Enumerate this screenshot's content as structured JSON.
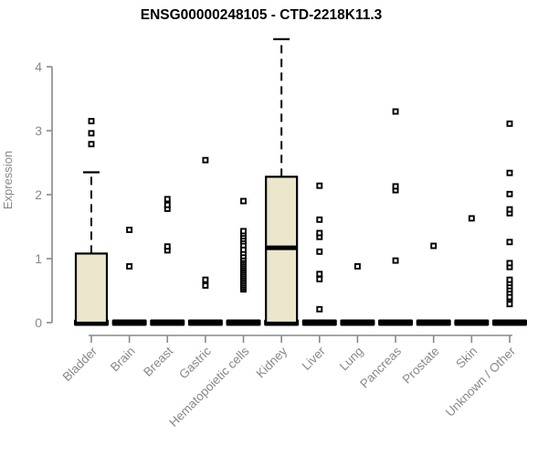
{
  "chart_data": {
    "type": "boxplot",
    "title": "ENSG00000248105 - CTD-2218K11.3",
    "ylabel": "Expression",
    "xlabel": "",
    "ylim": [
      0,
      4
    ],
    "yticks": [
      0,
      1,
      2,
      3,
      4
    ],
    "grid": false,
    "legend": "none",
    "categories": [
      "Bladder",
      "Brain",
      "Breast",
      "Gastric",
      "Hematopoietic cells",
      "Kidney",
      "Liver",
      "Lung",
      "Pancreas",
      "Prostate",
      "Skin",
      "Unknown / Other"
    ],
    "series": [
      {
        "name": "Bladder",
        "q1": 0,
        "median": 0,
        "q3": 1.08,
        "whisker_low": 0,
        "whisker_high": 2.35,
        "outliers": [
          2.79,
          2.96,
          3.15
        ]
      },
      {
        "name": "Brain",
        "q1": 0,
        "median": 0,
        "q3": 0,
        "whisker_low": 0,
        "whisker_high": 0,
        "outliers": [
          0.88,
          1.45
        ]
      },
      {
        "name": "Breast",
        "q1": 0,
        "median": 0,
        "q3": 0,
        "whisker_low": 0,
        "whisker_high": 0,
        "outliers": [
          1.13,
          1.19,
          1.78,
          1.84,
          1.93
        ]
      },
      {
        "name": "Gastric",
        "q1": 0,
        "median": 0,
        "q3": 0,
        "whisker_low": 0,
        "whisker_high": 0,
        "outliers": [
          0.58,
          0.67,
          2.54
        ]
      },
      {
        "name": "Hematopoietic cells",
        "q1": 0,
        "median": 0,
        "q3": 0,
        "whisker_low": 0,
        "whisker_high": 0,
        "outliers": [
          0.52,
          0.55,
          0.58,
          0.61,
          0.64,
          0.67,
          0.7,
          0.73,
          0.76,
          0.79,
          0.82,
          0.85,
          0.88,
          0.91,
          0.94,
          0.97,
          1.0,
          1.04,
          1.09,
          1.14,
          1.21,
          1.27,
          1.31,
          1.35,
          1.39,
          1.43,
          1.9
        ]
      },
      {
        "name": "Kidney",
        "q1": 0,
        "median": 1.17,
        "q3": 2.28,
        "whisker_low": 0,
        "whisker_high": 4.43,
        "outliers": []
      },
      {
        "name": "Liver",
        "q1": 0,
        "median": 0,
        "q3": 0,
        "whisker_low": 0,
        "whisker_high": 0,
        "outliers": [
          0.21,
          0.68,
          0.76,
          1.11,
          1.34,
          1.4,
          1.61,
          2.14
        ]
      },
      {
        "name": "Lung",
        "q1": 0,
        "median": 0,
        "q3": 0,
        "whisker_low": 0,
        "whisker_high": 0,
        "outliers": [
          0.88
        ]
      },
      {
        "name": "Pancreas",
        "q1": 0,
        "median": 0,
        "q3": 0,
        "whisker_low": 0,
        "whisker_high": 0,
        "outliers": [
          0.97,
          2.07,
          2.13,
          3.3
        ]
      },
      {
        "name": "Prostate",
        "q1": 0,
        "median": 0,
        "q3": 0,
        "whisker_low": 0,
        "whisker_high": 0,
        "outliers": [
          1.2
        ]
      },
      {
        "name": "Skin",
        "q1": 0,
        "median": 0,
        "q3": 0,
        "whisker_low": 0,
        "whisker_high": 0,
        "outliers": [
          1.63
        ]
      },
      {
        "name": "Unknown / Other",
        "q1": 0,
        "median": 0,
        "q3": 0,
        "whisker_low": 0,
        "whisker_high": 0,
        "outliers": [
          0.29,
          0.37,
          0.4,
          0.47,
          0.52,
          0.57,
          0.62,
          0.67,
          0.87,
          0.93,
          1.26,
          1.71,
          1.77,
          2.01,
          2.34,
          3.11
        ]
      }
    ],
    "colors": {
      "box_fill": "#ECE7CC",
      "box_border": "#000000",
      "median": "#000000",
      "whisker": "#000000",
      "outlier": "#000000",
      "axis": "#888888",
      "tick_label": "#888888",
      "title": "#000000",
      "background": "#FFFFFF"
    }
  }
}
